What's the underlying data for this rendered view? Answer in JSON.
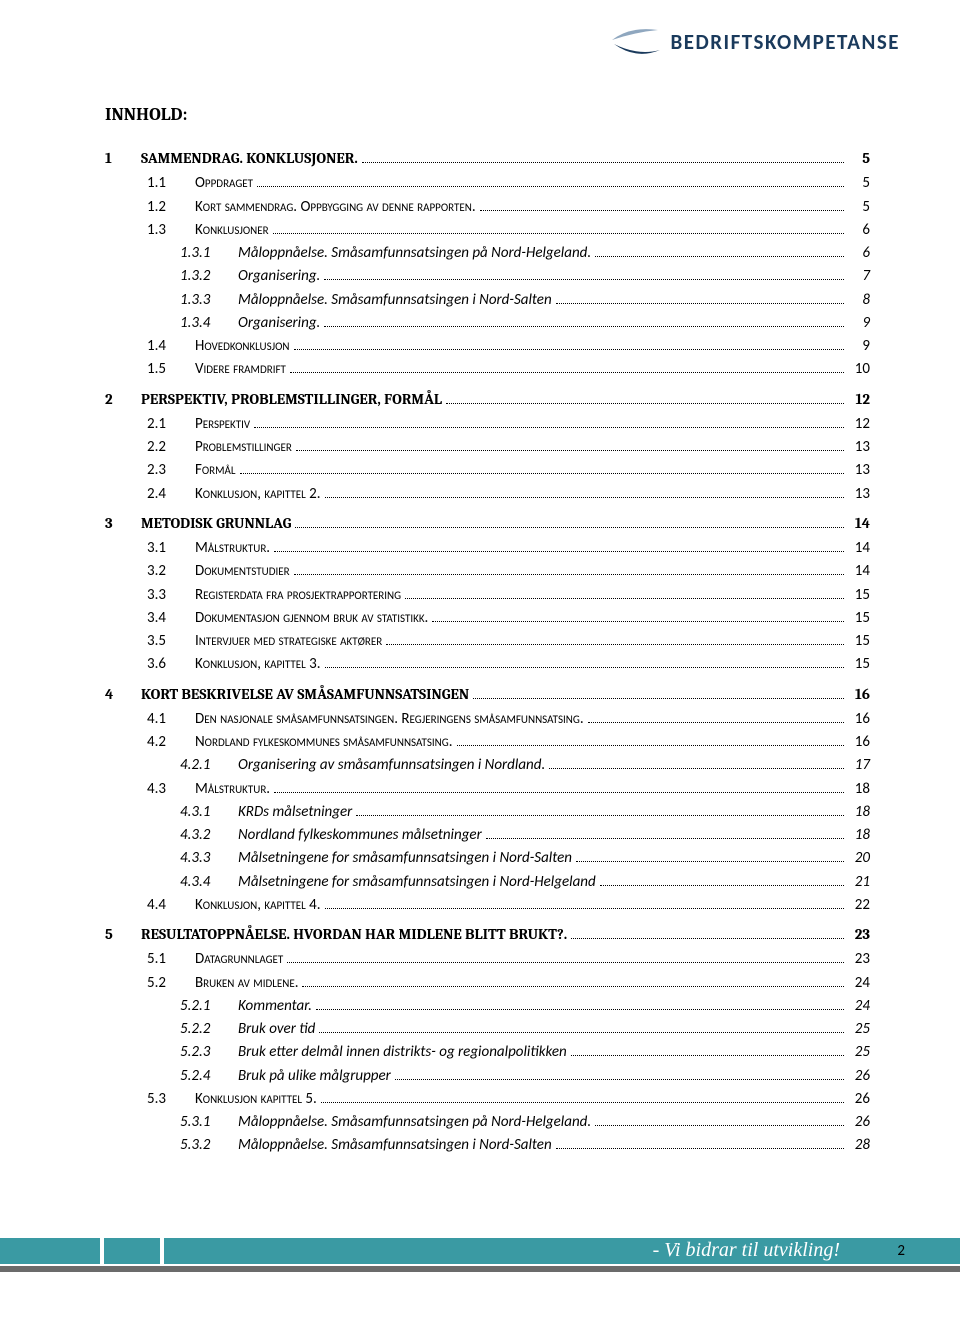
{
  "brand": {
    "name": "BEDRIFTSKOMPETANSE"
  },
  "title": "INNHOLD:",
  "colors": {
    "teal": "#3a9aa3",
    "grey": "#6b6b6b",
    "darkblue": "#1a3a5c",
    "swoosh_light": "#8fa7bf"
  },
  "footer": {
    "slogan": "- Vi bidrar til utvikling!",
    "page_number": "2"
  },
  "toc": [
    {
      "level": 0,
      "num": "1",
      "text": "SAMMENDRAG. KONKLUSJONER.",
      "page": "5"
    },
    {
      "level": 1,
      "num": "1.1",
      "text": "Oppdraget",
      "sc": true,
      "page": "5"
    },
    {
      "level": 1,
      "num": "1.2",
      "text": "Kort sammendrag. Oppbygging av denne rapporten.",
      "sc": true,
      "page": "5"
    },
    {
      "level": 1,
      "num": "1.3",
      "text": "Konklusjoner",
      "sc": true,
      "page": "6"
    },
    {
      "level": 2,
      "num": "1.3.1",
      "text": "Måloppnåelse. Småsamfunnsatsingen på Nord-Helgeland.",
      "page": "6"
    },
    {
      "level": 2,
      "num": "1.3.2",
      "text": "Organisering.",
      "page": "7"
    },
    {
      "level": 2,
      "num": "1.3.3",
      "text": "Måloppnåelse. Småsamfunnsatsingen i Nord-Salten",
      "page": "8"
    },
    {
      "level": 2,
      "num": "1.3.4",
      "text": "Organisering.",
      "page": "9"
    },
    {
      "level": 1,
      "num": "1.4",
      "text": "Hovedkonklusjon",
      "sc": true,
      "page": "9"
    },
    {
      "level": 1,
      "num": "1.5",
      "text": "Videre framdrift",
      "sc": true,
      "page": "10"
    },
    {
      "level": 0,
      "num": "2",
      "text": "PERSPEKTIV, PROBLEMSTILLINGER, FORMÅL",
      "page": "12"
    },
    {
      "level": 1,
      "num": "2.1",
      "text": "Perspektiv",
      "sc": true,
      "page": "12"
    },
    {
      "level": 1,
      "num": "2.2",
      "text": "Problemstillinger",
      "sc": true,
      "page": "13"
    },
    {
      "level": 1,
      "num": "2.3",
      "text": "Formål",
      "sc": true,
      "page": "13"
    },
    {
      "level": 1,
      "num": "2.4",
      "text": "Konklusjon, kapittel 2.",
      "sc": true,
      "page": "13"
    },
    {
      "level": 0,
      "num": "3",
      "text": "METODISK GRUNNLAG",
      "page": "14"
    },
    {
      "level": 1,
      "num": "3.1",
      "text": "Målstruktur.",
      "sc": true,
      "page": "14"
    },
    {
      "level": 1,
      "num": "3.2",
      "text": "Dokumentstudier",
      "sc": true,
      "page": "14"
    },
    {
      "level": 1,
      "num": "3.3",
      "text": "Registerdata fra prosjektrapportering",
      "sc": true,
      "page": "15"
    },
    {
      "level": 1,
      "num": "3.4",
      "text": "Dokumentasjon gjennom bruk av statistikk.",
      "sc": true,
      "page": "15"
    },
    {
      "level": 1,
      "num": "3.5",
      "text": "Intervjuer med strategiske aktører",
      "sc": true,
      "page": "15"
    },
    {
      "level": 1,
      "num": "3.6",
      "text": "Konklusjon, kapittel 3.",
      "sc": true,
      "page": "15"
    },
    {
      "level": 0,
      "num": "4",
      "text": "KORT BESKRIVELSE AV SMÅSAMFUNNSATSINGEN",
      "page": "16"
    },
    {
      "level": 1,
      "num": "4.1",
      "text": "Den nasjonale småsamfunnsatsingen. Regjeringens småsamfunnsatsing.",
      "sc": true,
      "page": "16"
    },
    {
      "level": 1,
      "num": "4.2",
      "text": "Nordland fylkeskommunes småsamfunnsatsing.",
      "sc": true,
      "page": "16"
    },
    {
      "level": 2,
      "num": "4.2.1",
      "text": "Organisering av småsamfunnsatsingen i Nordland.",
      "page": "17"
    },
    {
      "level": 1,
      "num": "4.3",
      "text": "Målstruktur.",
      "sc": true,
      "page": "18"
    },
    {
      "level": 2,
      "num": "4.3.1",
      "text": "KRDs målsetninger",
      "page": "18"
    },
    {
      "level": 2,
      "num": "4.3.2",
      "text": "Nordland fylkeskommunes målsetninger",
      "page": "18"
    },
    {
      "level": 2,
      "num": "4.3.3",
      "text": "Målsetningene for småsamfunnsatsingen i Nord-Salten",
      "page": "20"
    },
    {
      "level": 2,
      "num": "4.3.4",
      "text": "Målsetningene for småsamfunnsatsingen i Nord-Helgeland",
      "page": "21"
    },
    {
      "level": 1,
      "num": "4.4",
      "text": "Konklusjon, kapittel 4.",
      "sc": true,
      "page": "22"
    },
    {
      "level": 0,
      "num": "5",
      "text": "RESULTATOPPNÅELSE. HVORDAN HAR MIDLENE BLITT BRUKT?.",
      "page": "23"
    },
    {
      "level": 1,
      "num": "5.1",
      "text": "Datagrunnlaget",
      "sc": true,
      "page": "23"
    },
    {
      "level": 1,
      "num": "5.2",
      "text": "Bruken av midlene.",
      "sc": true,
      "page": "24"
    },
    {
      "level": 2,
      "num": "5.2.1",
      "text": "Kommentar.",
      "page": "24"
    },
    {
      "level": 2,
      "num": "5.2.2",
      "text": "Bruk over tid",
      "page": "25"
    },
    {
      "level": 2,
      "num": "5.2.3",
      "text": "Bruk etter delmål innen distrikts- og regionalpolitikken",
      "page": "25"
    },
    {
      "level": 2,
      "num": "5.2.4",
      "text": "Bruk på ulike målgrupper",
      "page": "26"
    },
    {
      "level": 1,
      "num": "5.3",
      "text": "Konklusjon kapittel 5.",
      "sc": true,
      "page": "26"
    },
    {
      "level": 2,
      "num": "5.3.1",
      "text": "Måloppnåelse. Småsamfunnsatsingen på Nord-Helgeland.",
      "page": "26"
    },
    {
      "level": 2,
      "num": "5.3.2",
      "text": "Måloppnåelse. Småsamfunnsatsingen i Nord-Salten",
      "page": "28"
    }
  ]
}
